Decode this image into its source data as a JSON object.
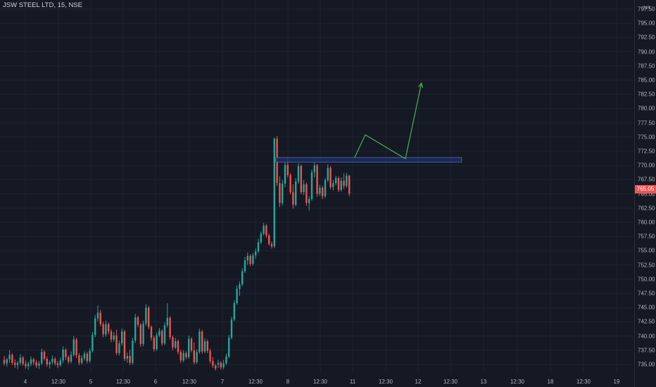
{
  "header": {
    "symbol_title": "JSW STEEL LTD, 15, NSE"
  },
  "price_axis": {
    "currency": "INR",
    "ticks": [
      "797.50",
      "795.00",
      "792.50",
      "790.00",
      "787.50",
      "785.00",
      "782.50",
      "780.00",
      "777.50",
      "775.00",
      "772.50",
      "770.00",
      "767.50",
      "765.00",
      "762.50",
      "760.00",
      "757.50",
      "755.00",
      "752.50",
      "750.00",
      "747.50",
      "745.00",
      "742.50",
      "740.00",
      "737.50",
      "735.00"
    ],
    "last_price": "765.05"
  },
  "time_axis": {
    "labels": [
      "4",
      "12:30",
      "5",
      "12:30",
      "6",
      "12:30",
      "7",
      "12:30",
      "8",
      "12:30",
      "11",
      "12:30",
      "12",
      "12:30",
      "13",
      "12:30",
      "18",
      "12:30",
      "19"
    ]
  },
  "colors": {
    "background": "#151924",
    "grid": "#1f2330",
    "up_candle": "#26a69a",
    "down_candle": "#ef5350",
    "zone_fill": "#1e2d57",
    "zone_border": "#3a5fb0",
    "projection_arrow": "#4caf50",
    "axis_text": "#b2b5be",
    "last_price_badge": "#f05350"
  },
  "chart_data": {
    "type": "candlestick",
    "title": "JSW STEEL LTD, 15, NSE",
    "ylim": [
      733.5,
      799
    ],
    "price_step": 2.5,
    "x_labels": [
      "4",
      "12:30",
      "5",
      "12:30",
      "6",
      "12:30",
      "7",
      "12:30",
      "8",
      "12:30",
      "11",
      "12:30",
      "12",
      "12:30",
      "13",
      "12:30",
      "18",
      "12:30",
      "19"
    ],
    "ohlc": [
      [
        735.8,
        736.5,
        734.8,
        735.2
      ],
      [
        735.2,
        736.2,
        734.6,
        735.9
      ],
      [
        735.9,
        737.5,
        735.3,
        736.7
      ],
      [
        736.7,
        737.0,
        734.9,
        735.3
      ],
      [
        735.3,
        735.9,
        734.4,
        734.9
      ],
      [
        734.9,
        735.6,
        734.2,
        735.3
      ],
      [
        735.3,
        736.8,
        734.9,
        736.2
      ],
      [
        736.2,
        736.5,
        734.8,
        735.1
      ],
      [
        735.1,
        735.7,
        734.3,
        734.7
      ],
      [
        734.7,
        735.5,
        734.1,
        735.1
      ],
      [
        735.1,
        736.4,
        734.7,
        735.9
      ],
      [
        735.9,
        736.2,
        734.9,
        735.4
      ],
      [
        735.4,
        735.8,
        734.4,
        734.8
      ],
      [
        734.8,
        735.6,
        734.2,
        735.2
      ],
      [
        735.2,
        737.8,
        734.9,
        737.2
      ],
      [
        737.2,
        737.5,
        735.7,
        736.0
      ],
      [
        736.0,
        736.4,
        734.6,
        735.0
      ],
      [
        735.0,
        735.7,
        734.3,
        735.4
      ],
      [
        735.4,
        736.6,
        735.0,
        736.0
      ],
      [
        736.0,
        736.3,
        734.8,
        735.2
      ],
      [
        735.2,
        735.6,
        734.4,
        734.9
      ],
      [
        734.9,
        736.2,
        734.6,
        735.7
      ],
      [
        735.7,
        738.2,
        735.3,
        737.6
      ],
      [
        737.6,
        737.9,
        735.8,
        736.3
      ],
      [
        736.3,
        736.6,
        735.1,
        735.5
      ],
      [
        735.5,
        737.3,
        735.2,
        736.7
      ],
      [
        736.7,
        740.0,
        736.4,
        739.4
      ],
      [
        739.4,
        739.7,
        736.1,
        736.6
      ],
      [
        736.6,
        737.0,
        734.9,
        735.3
      ],
      [
        735.3,
        736.6,
        735.0,
        736.1
      ],
      [
        736.1,
        737.3,
        735.7,
        736.9
      ],
      [
        736.9,
        737.2,
        735.2,
        735.6
      ],
      [
        735.6,
        737.9,
        735.3,
        737.4
      ],
      [
        737.4,
        740.7,
        737.1,
        740.2
      ],
      [
        740.2,
        743.7,
        739.8,
        743.1
      ],
      [
        743.1,
        745.4,
        742.6,
        744.1
      ],
      [
        744.1,
        744.6,
        741.7,
        742.1
      ],
      [
        742.1,
        742.5,
        739.8,
        740.3
      ],
      [
        740.3,
        742.7,
        739.9,
        742.1
      ],
      [
        742.1,
        742.4,
        740.3,
        740.8
      ],
      [
        740.8,
        741.2,
        738.9,
        739.4
      ],
      [
        739.4,
        740.7,
        739.0,
        740.1
      ],
      [
        740.1,
        741.1,
        736.6,
        737.0
      ],
      [
        737.0,
        739.2,
        736.6,
        738.7
      ],
      [
        738.7,
        741.3,
        738.3,
        740.8
      ],
      [
        740.8,
        741.1,
        735.6,
        736.0
      ],
      [
        736.0,
        737.1,
        735.3,
        736.5
      ],
      [
        736.5,
        737.6,
        734.9,
        735.3
      ],
      [
        735.3,
        739.7,
        735.0,
        739.2
      ],
      [
        739.2,
        743.9,
        738.8,
        743.3
      ],
      [
        743.3,
        743.6,
        741.6,
        742.0
      ],
      [
        742.0,
        742.3,
        738.1,
        738.6
      ],
      [
        738.6,
        742.7,
        738.2,
        742.2
      ],
      [
        742.2,
        745.6,
        741.8,
        745.0
      ],
      [
        745.0,
        745.3,
        741.2,
        741.6
      ],
      [
        741.6,
        741.9,
        739.2,
        739.7
      ],
      [
        739.7,
        740.1,
        737.3,
        737.7
      ],
      [
        737.7,
        740.6,
        737.4,
        740.1
      ],
      [
        740.1,
        741.4,
        739.8,
        740.9
      ],
      [
        740.9,
        741.2,
        738.3,
        738.7
      ],
      [
        738.7,
        742.4,
        738.4,
        741.9
      ],
      [
        741.9,
        745.8,
        741.5,
        743.2
      ],
      [
        743.2,
        743.5,
        739.4,
        739.8
      ],
      [
        739.8,
        740.1,
        737.5,
        738.0
      ],
      [
        738.0,
        739.7,
        737.7,
        739.1
      ],
      [
        739.1,
        739.4,
        736.8,
        737.2
      ],
      [
        737.2,
        737.6,
        735.3,
        735.7
      ],
      [
        735.7,
        737.5,
        735.4,
        737.0
      ],
      [
        737.0,
        737.3,
        735.9,
        736.3
      ],
      [
        736.3,
        740.1,
        736.0,
        739.5
      ],
      [
        739.5,
        739.8,
        737.1,
        737.5
      ],
      [
        737.5,
        738.9,
        735.0,
        735.4
      ],
      [
        735.4,
        737.7,
        735.1,
        737.2
      ],
      [
        737.2,
        741.3,
        736.9,
        740.8
      ],
      [
        740.8,
        741.1,
        736.9,
        737.3
      ],
      [
        737.3,
        739.6,
        737.0,
        739.1
      ],
      [
        739.1,
        739.4,
        737.0,
        737.4
      ],
      [
        737.4,
        737.8,
        735.2,
        735.6
      ],
      [
        735.6,
        736.3,
        734.4,
        734.8
      ],
      [
        734.8,
        735.1,
        733.9,
        734.3
      ],
      [
        735.0,
        735.8,
        734.4,
        735.3
      ],
      [
        735.3,
        735.6,
        734.1,
        734.5
      ],
      [
        734.5,
        735.8,
        734.2,
        735.2
      ],
      [
        735.2,
        736.9,
        734.9,
        736.4
      ],
      [
        736.4,
        740.2,
        736.1,
        739.7
      ],
      [
        739.7,
        743.4,
        739.4,
        742.9
      ],
      [
        742.9,
        746.3,
        742.6,
        745.8
      ],
      [
        745.8,
        748.9,
        745.5,
        748.3
      ],
      [
        748.3,
        749.6,
        747.1,
        749.1
      ],
      [
        749.1,
        751.9,
        748.8,
        751.4
      ],
      [
        751.4,
        753.9,
        751.1,
        753.3
      ],
      [
        753.3,
        754.7,
        752.5,
        754.1
      ],
      [
        754.1,
        754.4,
        752.3,
        752.7
      ],
      [
        752.7,
        754.6,
        752.4,
        754.2
      ],
      [
        754.2,
        755.4,
        753.6,
        754.9
      ],
      [
        754.9,
        757.1,
        754.6,
        756.5
      ],
      [
        756.5,
        758.4,
        756.2,
        758.0
      ],
      [
        758.0,
        759.9,
        757.7,
        759.4
      ],
      [
        759.4,
        759.7,
        757.3,
        757.7
      ],
      [
        757.7,
        758.0,
        755.9,
        756.2
      ],
      [
        756.2,
        756.6,
        755.4,
        755.8
      ],
      [
        755.8,
        774.9,
        755.5,
        774.7
      ],
      [
        774.7,
        775.2,
        766.4,
        766.9
      ],
      [
        766.9,
        768.1,
        762.7,
        763.4
      ],
      [
        763.4,
        767.4,
        763.0,
        766.8
      ],
      [
        766.8,
        770.7,
        766.2,
        770.1
      ],
      [
        770.1,
        771.5,
        767.9,
        768.3
      ],
      [
        768.3,
        768.7,
        764.9,
        765.3
      ],
      [
        765.3,
        766.7,
        762.4,
        763.1
      ],
      [
        763.1,
        767.8,
        762.8,
        767.2
      ],
      [
        767.2,
        770.4,
        766.8,
        769.9
      ],
      [
        769.9,
        770.2,
        764.9,
        765.3
      ],
      [
        765.3,
        767.4,
        764.8,
        766.7
      ],
      [
        766.7,
        767.0,
        762.9,
        763.4
      ],
      [
        763.4,
        764.6,
        762.1,
        764.1
      ],
      [
        764.1,
        769.3,
        763.8,
        768.8
      ],
      [
        768.8,
        770.5,
        767.9,
        770.0
      ],
      [
        770.0,
        770.3,
        764.5,
        765.0
      ],
      [
        765.0,
        766.6,
        764.6,
        766.1
      ],
      [
        766.1,
        766.4,
        764.1,
        764.6
      ],
      [
        764.6,
        767.8,
        764.3,
        767.4
      ],
      [
        767.4,
        770.2,
        767.1,
        769.6
      ],
      [
        769.6,
        769.9,
        765.8,
        766.2
      ],
      [
        766.2,
        767.4,
        765.6,
        766.9
      ],
      [
        766.9,
        768.2,
        766.5,
        767.8
      ],
      [
        767.8,
        768.1,
        765.3,
        765.7
      ],
      [
        765.7,
        767.9,
        765.4,
        767.3
      ],
      [
        767.3,
        768.6,
        765.9,
        766.4
      ],
      [
        766.4,
        768.7,
        766.1,
        768.2
      ],
      [
        768.2,
        768.4,
        764.6,
        765.05
      ]
    ],
    "annotations": {
      "resistance_zone": {
        "price_low": 770.6,
        "price_high": 771.4,
        "candle_start": 102,
        "candle_end": 171
      },
      "projection_path": [
        [
          131,
          771.4
        ],
        [
          135,
          775.4
        ],
        [
          150,
          771.2
        ],
        [
          156,
          784.5
        ]
      ]
    }
  }
}
